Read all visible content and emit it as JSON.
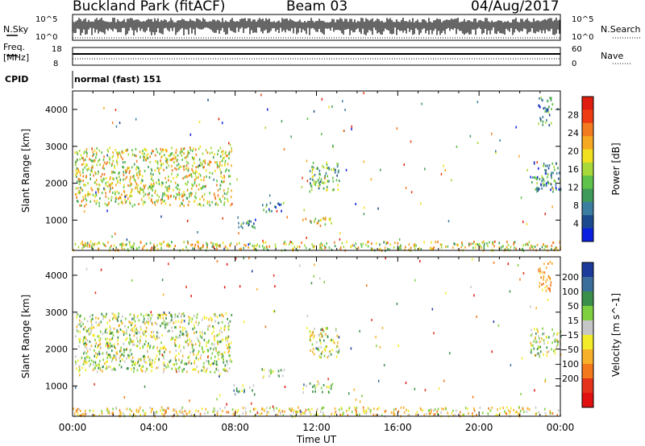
{
  "header": {
    "station": "Buckland Park (fitACF)",
    "beam": "Beam 03",
    "date": "04/Aug/2017"
  },
  "strip": {
    "nsky_label": "N.Sky",
    "nsearch_label": "N.Search",
    "noise_tick_top": "10^5",
    "noise_tick_bottom": "10^0",
    "freq_label_line1": "Freq.",
    "freq_label_line2": "[MHz]",
    "freq_ticks": [
      "18",
      "8"
    ],
    "nave_label": "Nave",
    "nave_ticks": [
      "60",
      "0"
    ],
    "cpid_label": "CPID",
    "cpid_value": "normal (fast) 151"
  },
  "colors": {
    "power": [
      "#0b1fe0",
      "#1c4a8f",
      "#3c7ea0",
      "#3e9a5a",
      "#5fc24a",
      "#a8d83a",
      "#f0e020",
      "#f7a822",
      "#f27a1f",
      "#ee3b12",
      "#e01e10"
    ],
    "velocity": [
      "#1c3a9a",
      "#3c6e9c",
      "#3a8f4a",
      "#7fd040",
      "#c6c6c6",
      "#f3ec2a",
      "#f7b02a",
      "#f2791c",
      "#e4331a",
      "#e01010"
    ]
  },
  "chart_data": [
    {
      "type": "heatmap",
      "name": "power",
      "xlabel": "",
      "ylabel": "Slant Range [km]",
      "xlim": [
        "00:00",
        "24:00"
      ],
      "ylim": [
        180,
        4500
      ],
      "yticks": [
        1000,
        2000,
        3000,
        4000
      ],
      "colorbar_label": "Power [dB]",
      "colorbar_ticks": [
        4,
        8,
        12,
        16,
        20,
        24,
        28
      ],
      "colorbar_range": [
        0,
        32
      ],
      "regions": [
        {
          "t": [
            0.1,
            7.8
          ],
          "r": [
            1400,
            3000
          ],
          "v": 18
        },
        {
          "t": [
            7.9,
            9.0
          ],
          "r": [
            800,
            1050
          ],
          "v": 10
        },
        {
          "t": [
            9.3,
            10.4
          ],
          "r": [
            1250,
            1500
          ],
          "v": 8
        },
        {
          "t": [
            11.3,
            12.8
          ],
          "r": [
            850,
            1100
          ],
          "v": 18
        },
        {
          "t": [
            11.6,
            13.1
          ],
          "r": [
            1800,
            2600
          ],
          "v": 12
        },
        {
          "t": [
            22.5,
            24.0
          ],
          "r": [
            1800,
            2600
          ],
          "v": 8
        },
        {
          "t": [
            22.9,
            23.6
          ],
          "r": [
            3600,
            4400
          ],
          "v": 8
        },
        {
          "t": [
            0.0,
            24.0
          ],
          "r": [
            200,
            450
          ],
          "v": 18
        }
      ]
    },
    {
      "type": "heatmap",
      "name": "velocity",
      "xlabel": "Time UT",
      "ylabel": "Slant Range [km]",
      "xlim": [
        "00:00",
        "24:00"
      ],
      "xticks": [
        "00:00",
        "04:00",
        "08:00",
        "12:00",
        "16:00",
        "20:00",
        "00:00"
      ],
      "ylim": [
        180,
        4500
      ],
      "yticks": [
        1000,
        2000,
        3000,
        4000
      ],
      "colorbar_label": "Velocity [m s^-1]",
      "colorbar_ticks": [
        200,
        100,
        50,
        15,
        -15,
        -50,
        -100,
        -200
      ],
      "regions": [
        {
          "t": [
            0.1,
            7.8
          ],
          "r": [
            1400,
            3000
          ],
          "v": 0
        },
        {
          "t": [
            7.9,
            9.0
          ],
          "r": [
            800,
            1050
          ],
          "v": 40
        },
        {
          "t": [
            9.3,
            10.4
          ],
          "r": [
            1250,
            1500
          ],
          "v": 40
        },
        {
          "t": [
            11.3,
            12.8
          ],
          "r": [
            850,
            1100
          ],
          "v": 40
        },
        {
          "t": [
            11.6,
            13.1
          ],
          "r": [
            1800,
            2600
          ],
          "v": 0
        },
        {
          "t": [
            22.5,
            24.0
          ],
          "r": [
            1800,
            2600
          ],
          "v": 0
        },
        {
          "t": [
            22.9,
            23.6
          ],
          "r": [
            3600,
            4400
          ],
          "v": -120
        },
        {
          "t": [
            0.0,
            24.0
          ],
          "r": [
            200,
            450
          ],
          "v": -40
        }
      ]
    }
  ]
}
